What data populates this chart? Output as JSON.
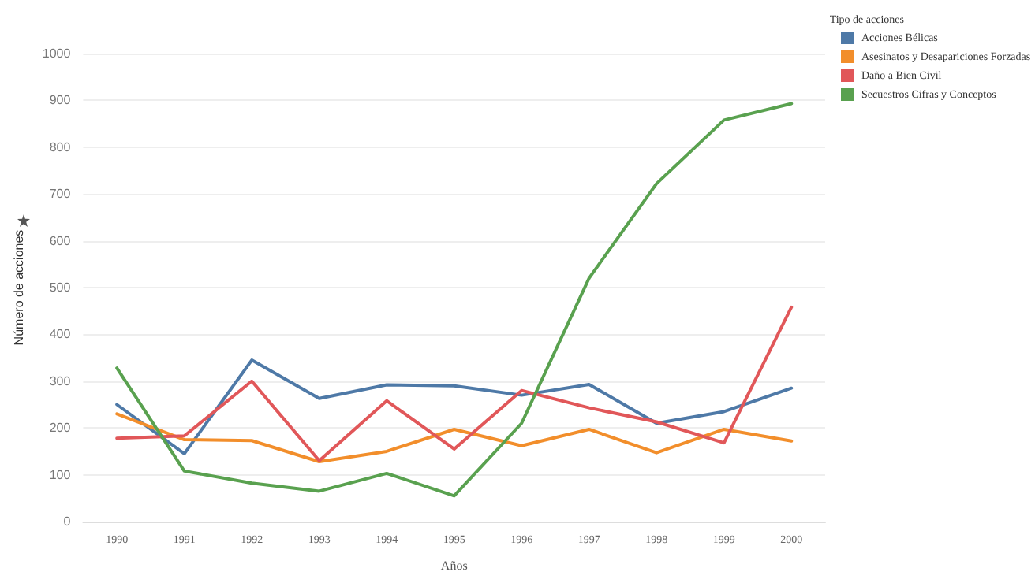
{
  "chart_data": {
    "type": "line",
    "xlabel": "Años",
    "ylabel": "Número de acciones",
    "legend_title": "Tipo de acciones",
    "categories": [
      "1990",
      "1991",
      "1992",
      "1993",
      "1994",
      "1995",
      "1996",
      "1997",
      "1998",
      "1999",
      "2000"
    ],
    "series": [
      {
        "name": "Acciones Bélicas",
        "color": "#4e79a7",
        "values": [
          250,
          145,
          345,
          263,
          292,
          290,
          270,
          293,
          210,
          235,
          285
        ]
      },
      {
        "name": "Asesinatos y Desapariciones Forzadas",
        "color": "#f28e2b",
        "values": [
          230,
          175,
          173,
          128,
          150,
          197,
          162,
          197,
          147,
          197,
          172
        ]
      },
      {
        "name": "Daño a Bien Civil",
        "color": "#e15759",
        "values": [
          178,
          183,
          300,
          130,
          258,
          155,
          280,
          243,
          213,
          168,
          458
        ]
      },
      {
        "name": "Secuestros Cifras y Conceptos",
        "color": "#59a14f",
        "values": [
          328,
          108,
          82,
          65,
          103,
          55,
          210,
          520,
          722,
          858,
          893
        ]
      }
    ],
    "ylim": [
      0,
      1000
    ],
    "yticks": [
      0,
      100,
      200,
      300,
      400,
      500,
      600,
      700,
      800,
      900,
      1000
    ],
    "grid": "y",
    "legend": "top right",
    "marker": "none",
    "line_style": "solid"
  }
}
